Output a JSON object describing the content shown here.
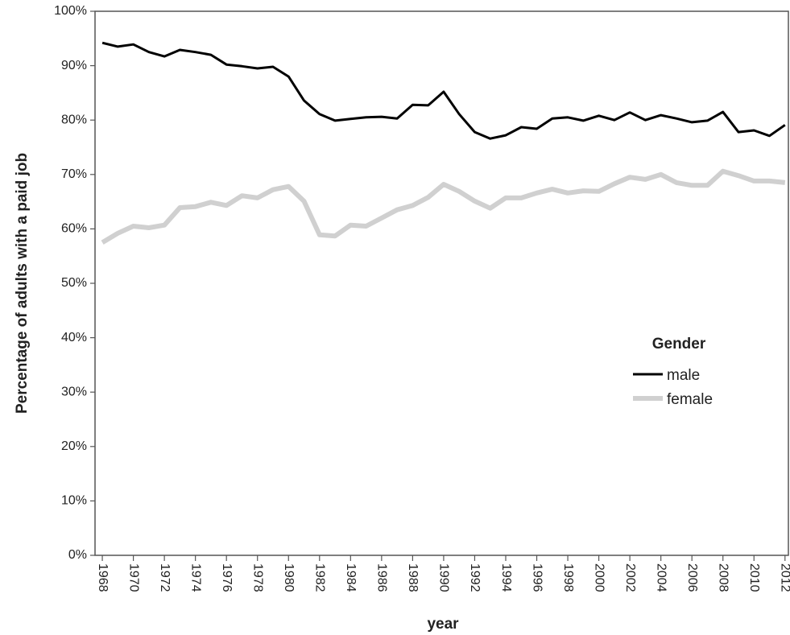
{
  "chart_data": {
    "type": "line",
    "y_label": "Percentage of adults with a paid job",
    "x_label": "year",
    "legend_title": "Gender",
    "legend_position": "center-right",
    "x": [
      1968,
      1969,
      1970,
      1971,
      1972,
      1973,
      1974,
      1975,
      1976,
      1977,
      1978,
      1979,
      1980,
      1981,
      1982,
      1983,
      1984,
      1985,
      1986,
      1987,
      1988,
      1989,
      1990,
      1991,
      1992,
      1993,
      1994,
      1995,
      1996,
      1997,
      1998,
      1999,
      2000,
      2001,
      2002,
      2003,
      2004,
      2005,
      2006,
      2007,
      2008,
      2009,
      2010,
      2011,
      2012
    ],
    "series": [
      {
        "name": "male",
        "color": "#000000",
        "width": 3,
        "values": [
          94.2,
          93.5,
          93.9,
          92.5,
          91.7,
          92.9,
          92.5,
          92.0,
          90.2,
          89.9,
          89.5,
          89.8,
          88.0,
          83.6,
          81.1,
          79.9,
          80.2,
          80.5,
          80.6,
          80.3,
          82.8,
          82.7,
          85.2,
          81.1,
          77.8,
          76.6,
          77.2,
          78.7,
          78.4,
          80.3,
          80.5,
          79.9,
          80.8,
          80.0,
          81.4,
          80.0,
          80.9,
          80.3,
          79.6,
          79.9,
          81.5,
          77.8,
          78.1,
          77.1,
          79.1
        ]
      },
      {
        "name": "female",
        "color": "#d0d0d0",
        "width": 6,
        "values": [
          57.5,
          59.2,
          60.5,
          60.2,
          60.7,
          63.9,
          64.1,
          64.9,
          64.3,
          66.1,
          65.7,
          67.2,
          67.8,
          65.1,
          58.9,
          58.7,
          60.7,
          60.5,
          62.0,
          63.5,
          64.3,
          65.8,
          68.2,
          66.9,
          65.1,
          63.8,
          65.7,
          65.7,
          66.6,
          67.3,
          66.6,
          67.0,
          66.9,
          68.3,
          69.5,
          69.1,
          70.0,
          68.5,
          68.0,
          68.0,
          70.6,
          69.8,
          68.8,
          68.8,
          68.5
        ]
      }
    ],
    "xlim": [
      1967.53,
      2012.27
    ],
    "xticks": [
      1968,
      1970,
      1972,
      1974,
      1976,
      1978,
      1980,
      1982,
      1984,
      1986,
      1988,
      1990,
      1992,
      1994,
      1996,
      1998,
      2000,
      2002,
      2004,
      2006,
      2008,
      2010,
      2012
    ],
    "ylim": [
      0,
      100
    ],
    "yticks": [
      {
        "value": 0,
        "label": "0%"
      },
      {
        "value": 10,
        "label": "10%"
      },
      {
        "value": 20,
        "label": "20%"
      },
      {
        "value": 30,
        "label": "30%"
      },
      {
        "value": 40,
        "label": "40%"
      },
      {
        "value": 50,
        "label": "50%"
      },
      {
        "value": 60,
        "label": "60%"
      },
      {
        "value": 70,
        "label": "70%"
      },
      {
        "value": 80,
        "label": "80%"
      },
      {
        "value": 90,
        "label": "90%"
      },
      {
        "value": 100,
        "label": "100%"
      }
    ],
    "grid": false
  }
}
